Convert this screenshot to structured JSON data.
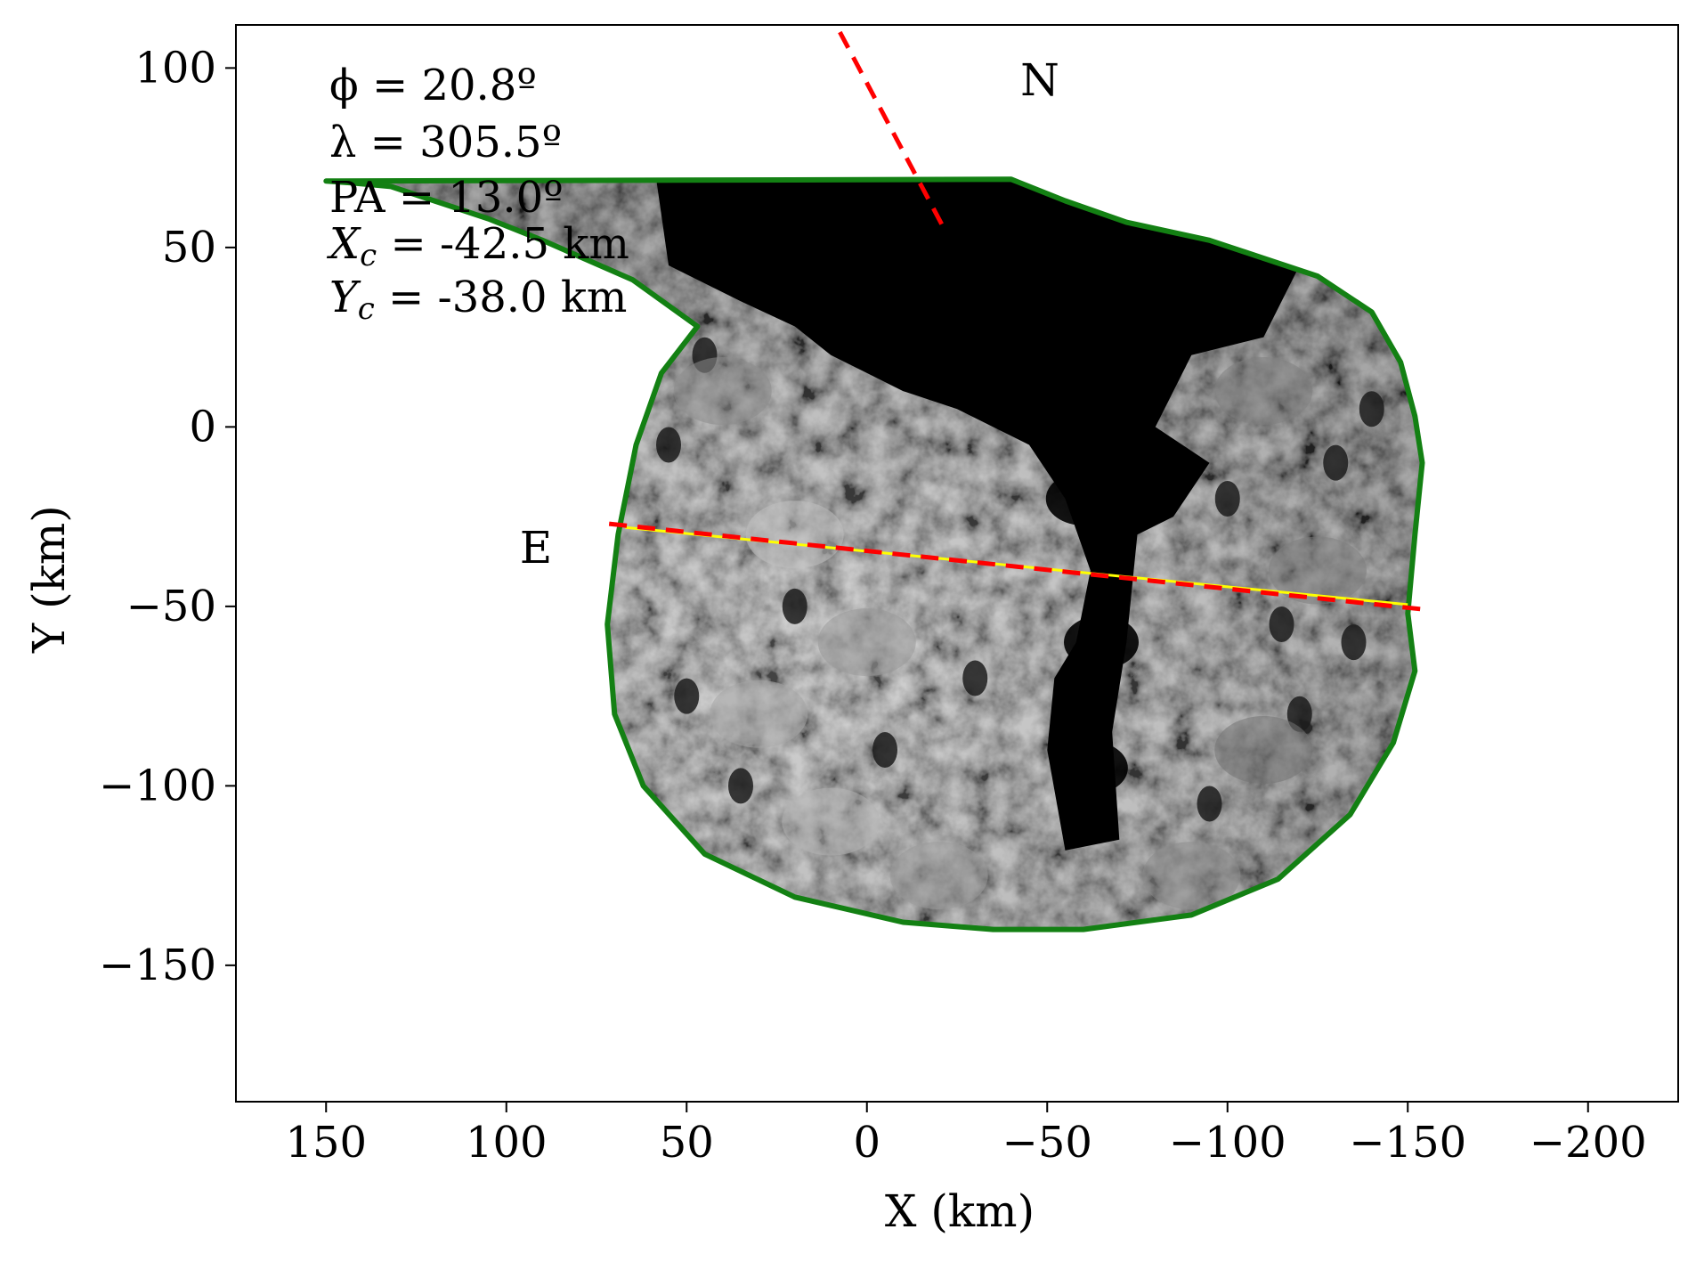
{
  "chart_data": {
    "type": "scatter",
    "title": "",
    "xlabel": "X (km)",
    "ylabel": "Y (km)",
    "xlim": [
      175,
      -225
    ],
    "ylim": [
      -188,
      112
    ],
    "x_inverted": true,
    "xticks": [
      150,
      100,
      50,
      0,
      -50,
      -100,
      -150,
      -200
    ],
    "xtick_labels": [
      "150",
      "100",
      "50",
      "0",
      "−50",
      "−100",
      "−150",
      "−200"
    ],
    "yticks": [
      100,
      50,
      0,
      -50,
      -100,
      -150
    ],
    "ytick_labels": [
      "100",
      "50",
      "0",
      "−50",
      "−100",
      "−150"
    ],
    "grid": false,
    "annotations": {
      "phi": "ϕ = 20.8º",
      "lambda": "λ = 305.5º",
      "pa": "PA = 13.0º",
      "xc": "X",
      "xc_sub": "c",
      "xc_value": " = -42.5 km",
      "yc": "Y",
      "yc_sub": "c",
      "yc_value": " = -38.0 km"
    },
    "direction_labels": {
      "north": "N",
      "east": "E"
    },
    "limb_contour": {
      "color": "#138013",
      "points": [
        [
          47,
          28
        ],
        [
          65,
          41
        ],
        [
          90,
          52
        ],
        [
          105,
          58
        ],
        [
          120,
          63
        ],
        [
          132,
          67
        ],
        [
          143,
          68
        ],
        [
          150,
          68.5
        ],
        [
          -40,
          69
        ],
        [
          -55,
          63
        ],
        [
          -72,
          57
        ],
        [
          -95,
          52
        ],
        [
          -110,
          47
        ],
        [
          -125,
          42
        ],
        [
          -140,
          32
        ],
        [
          -148,
          18
        ],
        [
          -152,
          3
        ],
        [
          -154,
          -10
        ],
        [
          -152,
          -30
        ],
        [
          -150,
          -52
        ],
        [
          -152,
          -68
        ],
        [
          -146,
          -88
        ],
        [
          -134,
          -108
        ],
        [
          -114,
          -126
        ],
        [
          -90,
          -136
        ],
        [
          -60,
          -140
        ],
        [
          -35,
          -140
        ],
        [
          -10,
          -138
        ],
        [
          20,
          -131
        ],
        [
          45,
          -119
        ],
        [
          62,
          -100
        ],
        [
          70,
          -80
        ],
        [
          72,
          -55
        ],
        [
          69,
          -30
        ],
        [
          64,
          -5
        ],
        [
          57,
          15
        ]
      ]
    },
    "north_axis": {
      "color": "#ff0000",
      "style": "dashed",
      "x": [
        7.5,
        -21
      ],
      "y": [
        110,
        56
      ]
    },
    "east_axis": {
      "color": "#ff0000",
      "style": "dashed",
      "x": [
        71.5,
        -156
      ],
      "y": [
        -27,
        -51
      ]
    },
    "equator": {
      "color": "#ffff00",
      "x": [
        67,
        -150
      ],
      "y": [
        -28,
        -49.5
      ]
    },
    "series": [
      {
        "marker": "image",
        "points": [
          [
            -20,
            50,
            0
          ],
          [
            -55,
            45,
            0
          ],
          [
            -80,
            30,
            0
          ],
          [
            -50,
            10,
            0
          ],
          [
            -60,
            -20,
            0
          ],
          [
            -65,
            -60,
            0
          ],
          [
            -62,
            -95,
            0
          ],
          [
            40,
            10,
            0.55
          ],
          [
            20,
            -30,
            0.75
          ],
          [
            0,
            -60,
            0.6
          ],
          [
            30,
            -80,
            0.65
          ],
          [
            10,
            -110,
            0.7
          ],
          [
            -20,
            -125,
            0.6
          ],
          [
            -110,
            10,
            0.5
          ],
          [
            -125,
            -40,
            0.5
          ],
          [
            -110,
            -90,
            0.45
          ],
          [
            -90,
            -125,
            0.55
          ]
        ]
      }
    ]
  }
}
